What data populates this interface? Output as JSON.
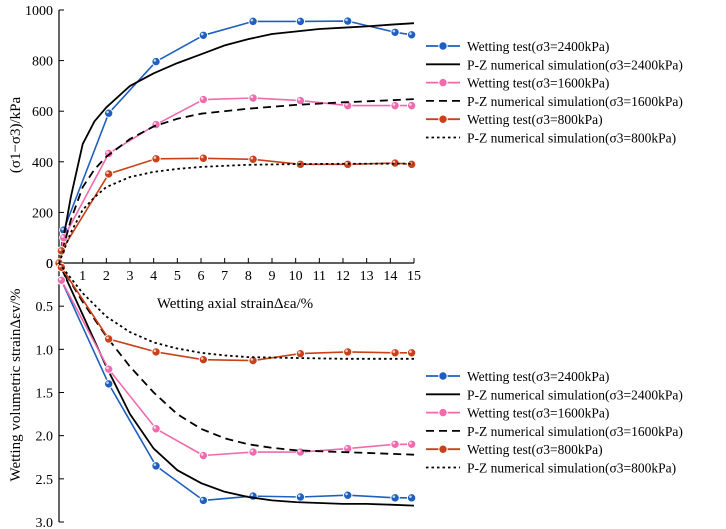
{
  "chart_data": [
    {
      "type": "line",
      "panel": "stress",
      "ylabel": "(σ1−σ3)/kPa",
      "xlabel": "Wetting axial strainΔεa/%",
      "xlim": [
        0,
        15
      ],
      "ylim": [
        0,
        1000
      ],
      "x_ticks": [
        0,
        1,
        2,
        3,
        4,
        5,
        6,
        7,
        8,
        9,
        10,
        11,
        12,
        13,
        14,
        15
      ],
      "y_ticks": [
        0,
        200,
        400,
        600,
        800,
        1000
      ],
      "legend_position": "right",
      "series": [
        {
          "name": "Wetting test(σ3=2400kPa)",
          "style": "marker-line",
          "color": "#1f5fbf",
          "x": [
            0,
            0.2,
            2.1,
            4.1,
            6.1,
            8.2,
            10.2,
            12.2,
            14.2,
            14.9
          ],
          "y": [
            0,
            130,
            592,
            796,
            900,
            955,
            955,
            956,
            912,
            902
          ]
        },
        {
          "name": "P-Z numerical simulation(σ3=2400kPa)",
          "style": "solid",
          "color": "#000000",
          "x": [
            0,
            0.5,
            1,
            1.5,
            2,
            3,
            4,
            5,
            6,
            7,
            8,
            9,
            10,
            11,
            12,
            13,
            14,
            15
          ],
          "y": [
            0,
            260,
            470,
            560,
            615,
            700,
            750,
            790,
            825,
            860,
            885,
            905,
            915,
            925,
            930,
            935,
            942,
            948
          ]
        },
        {
          "name": "Wetting test(σ3=1600kPa)",
          "style": "marker-line",
          "color": "#f06aae",
          "x": [
            0,
            0.2,
            2.1,
            4.1,
            6.1,
            8.2,
            10.2,
            12.2,
            14.2,
            14.9
          ],
          "y": [
            0,
            100,
            433,
            547,
            646,
            652,
            642,
            622,
            622,
            622
          ]
        },
        {
          "name": "P-Z numerical simulation(σ3=1600kPa)",
          "style": "dashed",
          "color": "#000000",
          "x": [
            0,
            0.5,
            1,
            1.5,
            2,
            3,
            4,
            5,
            6,
            8,
            10,
            12,
            14,
            15
          ],
          "y": [
            0,
            170,
            300,
            370,
            420,
            490,
            540,
            570,
            590,
            610,
            625,
            635,
            643,
            648
          ]
        },
        {
          "name": "Wetting test(σ3=800kPa)",
          "style": "marker-line",
          "color": "#c9411a",
          "x": [
            0,
            0.1,
            2.1,
            4.1,
            6.1,
            8.2,
            10.2,
            12.2,
            14.2,
            14.9
          ],
          "y": [
            0,
            48,
            352,
            412,
            414,
            410,
            390,
            390,
            395,
            390
          ]
        },
        {
          "name": "P-Z numerical simulation(σ3=800kPa)",
          "style": "dotted",
          "color": "#000000",
          "x": [
            0,
            0.5,
            1,
            1.5,
            2,
            3,
            4,
            5,
            6,
            8,
            10,
            12,
            15
          ],
          "y": [
            0,
            120,
            210,
            260,
            300,
            340,
            360,
            372,
            380,
            388,
            391,
            392,
            393
          ]
        }
      ]
    },
    {
      "type": "line",
      "panel": "volumetric",
      "ylabel": "Wetting volumetric strainΔεv/%",
      "xlim": [
        0,
        15
      ],
      "ylim": [
        0,
        3.0
      ],
      "y_inverted": true,
      "y_ticks": [
        0,
        0.5,
        1.0,
        1.5,
        2.0,
        2.5,
        3.0
      ],
      "y_tick_labels": [
        "0",
        "0.5",
        "1.0",
        "1.5",
        "2.0",
        "2.5",
        "3.0"
      ],
      "legend_position": "bottom-right",
      "series": [
        {
          "name": "Wetting test(σ3=2400kPa)",
          "style": "marker-line",
          "color": "#1f5fbf",
          "x": [
            0.1,
            2.1,
            4.1,
            6.1,
            8.2,
            10.2,
            12.2,
            14.2,
            14.9
          ],
          "y": [
            0.2,
            1.4,
            2.35,
            2.75,
            2.7,
            2.71,
            2.69,
            2.72,
            2.72
          ]
        },
        {
          "name": "P-Z numerical simulation(σ3=2400kPa)",
          "style": "solid",
          "color": "#000000",
          "x": [
            0,
            1,
            2,
            3,
            4,
            5,
            6,
            7,
            8,
            9,
            10,
            11,
            12,
            13,
            14,
            15
          ],
          "y": [
            0,
            0.6,
            1.2,
            1.75,
            2.15,
            2.4,
            2.55,
            2.65,
            2.71,
            2.75,
            2.77,
            2.78,
            2.79,
            2.79,
            2.8,
            2.81
          ]
        },
        {
          "name": "Wetting test(σ3=1600kPa)",
          "style": "marker-line",
          "color": "#f06aae",
          "x": [
            0.1,
            2.1,
            4.1,
            6.1,
            8.2,
            10.2,
            12.2,
            14.2,
            14.9
          ],
          "y": [
            0.2,
            1.23,
            1.92,
            2.23,
            2.19,
            2.19,
            2.15,
            2.1,
            2.1
          ]
        },
        {
          "name": "P-Z numerical simulation(σ3=1600kPa)",
          "style": "dashed",
          "color": "#000000",
          "x": [
            0,
            1,
            2,
            3,
            4,
            5,
            6,
            7,
            8,
            9,
            10,
            11,
            12,
            13,
            14,
            15
          ],
          "y": [
            0,
            0.45,
            0.85,
            1.2,
            1.5,
            1.75,
            1.92,
            2.03,
            2.1,
            2.14,
            2.17,
            2.18,
            2.19,
            2.2,
            2.21,
            2.22
          ]
        },
        {
          "name": "Wetting test(σ3=800kPa)",
          "style": "marker-line",
          "color": "#c9411a",
          "x": [
            0.1,
            2.1,
            4.1,
            6.1,
            8.2,
            10.2,
            12.2,
            14.2,
            14.9
          ],
          "y": [
            0.05,
            0.88,
            1.03,
            1.12,
            1.13,
            1.05,
            1.03,
            1.04,
            1.04
          ]
        },
        {
          "name": "P-Z numerical simulation(σ3=800kPa)",
          "style": "dotted",
          "color": "#000000",
          "x": [
            0,
            1,
            2,
            3,
            4,
            5,
            6,
            7,
            8,
            10,
            12,
            15
          ],
          "y": [
            0,
            0.35,
            0.62,
            0.8,
            0.92,
            0.99,
            1.04,
            1.07,
            1.09,
            1.1,
            1.11,
            1.11
          ]
        }
      ]
    }
  ]
}
